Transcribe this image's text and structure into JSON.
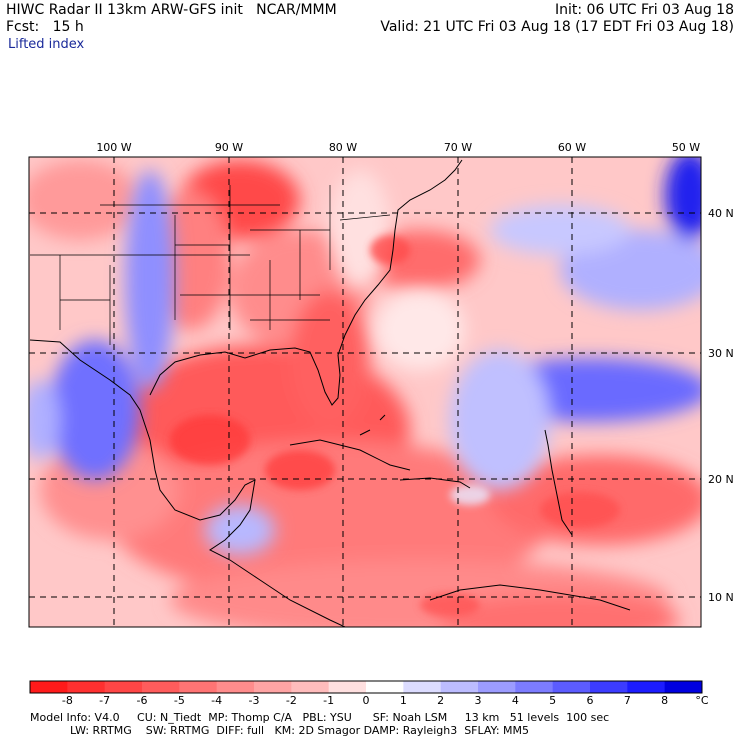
{
  "header": {
    "line1_left": "HIWC Radar II 13km ARW-GFS init   NCAR/MMM",
    "line1_right": "Init: 06 UTC Fri 03 Aug 18",
    "line2_left": "Fcst:   15 h",
    "line2_right": "Valid: 21 UTC Fri 03 Aug 18 (17 EDT Fri 03 Aug 18)",
    "field": "Lifted index"
  },
  "axes": {
    "lon_labels": [
      "100 W",
      "90 W",
      "80 W",
      "70 W",
      "60 W",
      "50 W"
    ],
    "lat_labels": [
      "40 N",
      "30 N",
      "20 N",
      "10 N"
    ]
  },
  "colorbar": {
    "labels": [
      "-8",
      "-7",
      "-6",
      "-5",
      "-4",
      "-3",
      "-2",
      "-1",
      "0",
      "1",
      "2",
      "3",
      "4",
      "5",
      "6",
      "7",
      "8"
    ],
    "unit": "°C",
    "colors": [
      "#ff1a1a",
      "#ff3030",
      "#ff4646",
      "#ff5c5c",
      "#ff7474",
      "#ff8c8c",
      "#ffa4a4",
      "#ffbcbc",
      "#ffe0e0",
      "#ffffff",
      "#dcdcff",
      "#bcbcff",
      "#9c9cff",
      "#7c7cff",
      "#5c5cff",
      "#3c3cff",
      "#1c1cff",
      "#0000e0"
    ]
  },
  "footer": {
    "line1": "Model Info: V4.0     CU: N_Tiedt  MP: Thomp C/A   PBL: YSU      SF: Noah LSM     13 km   51 levels  100 sec",
    "line2": "LW: RRTMG    SW: RRTMG  DIFF: full   KM: 2D Smagor DAMP: Rayleigh3  SFLAY: MM5"
  }
}
